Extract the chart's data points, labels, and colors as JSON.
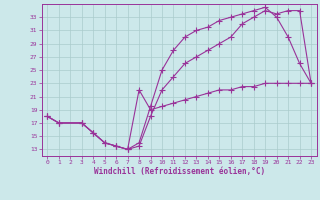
{
  "bg_color": "#cce8ea",
  "grid_color": "#aacccc",
  "line_color": "#993399",
  "xlabel": "Windchill (Refroidissement éolien,°C)",
  "xlim": [
    -0.5,
    23.5
  ],
  "ylim": [
    12,
    35
  ],
  "xticks": [
    0,
    1,
    2,
    3,
    4,
    5,
    6,
    7,
    8,
    9,
    10,
    11,
    12,
    13,
    14,
    15,
    16,
    17,
    18,
    19,
    20,
    21,
    22,
    23
  ],
  "yticks": [
    13,
    15,
    17,
    19,
    21,
    23,
    25,
    27,
    29,
    31,
    33
  ],
  "curve1_x": [
    0,
    1,
    3,
    4,
    5,
    6,
    7,
    8,
    9,
    10,
    11,
    12,
    13,
    14,
    15,
    16,
    17,
    18,
    19,
    20,
    21,
    22,
    23
  ],
  "curve1_y": [
    18,
    17,
    17,
    15.5,
    14,
    13.5,
    13,
    13.5,
    18,
    22,
    24,
    26,
    27,
    28,
    29,
    30,
    32,
    33,
    34,
    33.5,
    34,
    34,
    23
  ],
  "curve2_x": [
    0,
    1,
    3,
    4,
    5,
    6,
    7,
    8,
    9,
    10,
    11,
    12,
    13,
    14,
    15,
    16,
    17,
    18,
    19,
    20,
    21,
    22,
    23
  ],
  "curve2_y": [
    18,
    17,
    17,
    15.5,
    14,
    13.5,
    13,
    14,
    19.5,
    25,
    28,
    30,
    31,
    31.5,
    32.5,
    33,
    33.5,
    34,
    34.5,
    33,
    30,
    26,
    23
  ],
  "curve3_x": [
    0,
    1,
    3,
    4,
    5,
    6,
    7,
    8,
    9,
    10,
    11,
    12,
    13,
    14,
    15,
    16,
    17,
    18,
    19,
    20,
    21,
    22,
    23
  ],
  "curve3_y": [
    18,
    17,
    17,
    15.5,
    14,
    13.5,
    13,
    22,
    19,
    19.5,
    20,
    20.5,
    21,
    21.5,
    22,
    22,
    22.5,
    22.5,
    23,
    23,
    23,
    23,
    23
  ]
}
